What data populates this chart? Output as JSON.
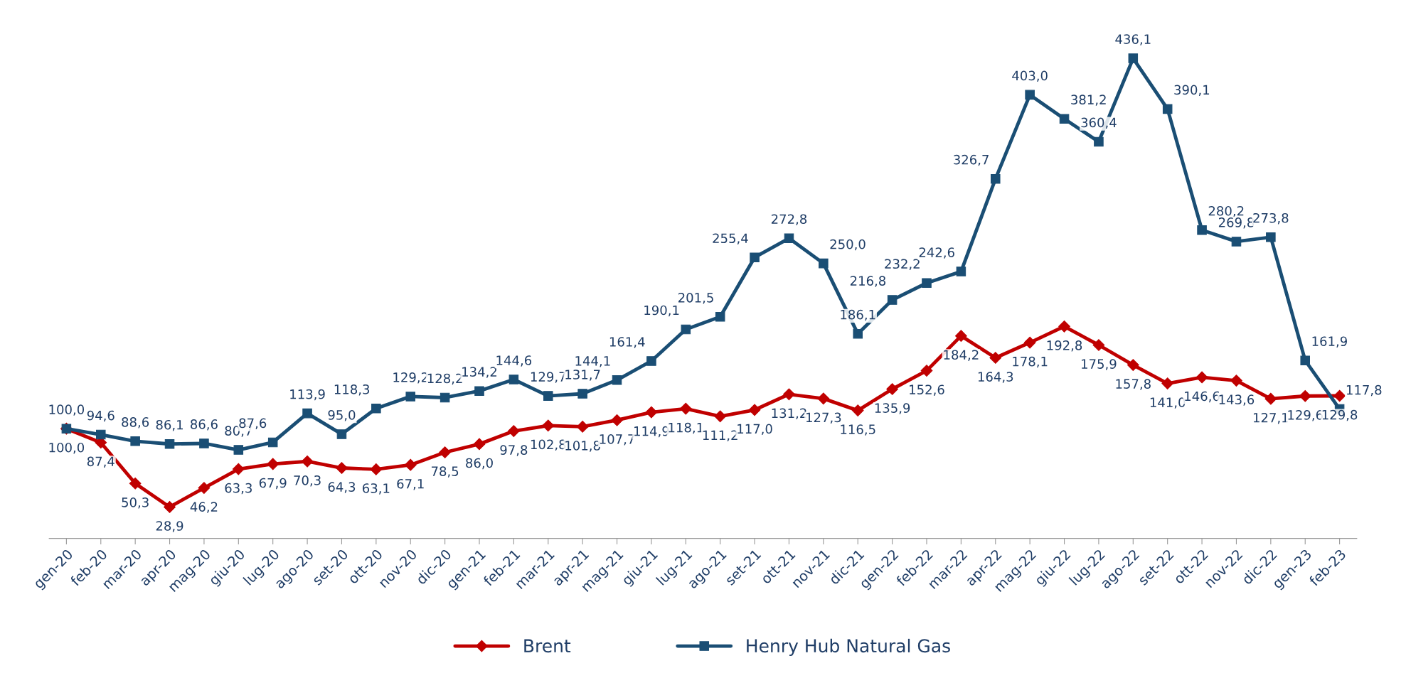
{
  "chart_data": {
    "type": "line",
    "categories": [
      "gen-20",
      "feb-20",
      "mar-20",
      "apr-20",
      "mag-20",
      "giu-20",
      "lug-20",
      "ago-20",
      "set-20",
      "ott-20",
      "nov-20",
      "dic-20",
      "gen-21",
      "feb-21",
      "mar-21",
      "apr-21",
      "mag-21",
      "giu-21",
      "lug-21",
      "ago-21",
      "set-21",
      "ott-21",
      "nov-21",
      "dic-21",
      "gen-22",
      "feb-22",
      "mar-22",
      "apr-22",
      "mag-22",
      "giu-22",
      "lug-22",
      "ago-22",
      "set-22",
      "ott-22",
      "nov-22",
      "dic-22",
      "gen-23",
      "feb-23"
    ],
    "series": [
      {
        "name": "Brent",
        "color": "#c00000",
        "marker": "diamond",
        "values": [
          100.0,
          87.4,
          50.3,
          28.9,
          46.2,
          63.3,
          67.9,
          70.3,
          64.3,
          63.1,
          67.1,
          78.5,
          86.0,
          97.8,
          102.8,
          101.8,
          107.7,
          114.9,
          118.1,
          111.2,
          117.0,
          131.2,
          127.3,
          116.5,
          135.9,
          152.6,
          184.2,
          164.3,
          178.1,
          192.8,
          175.9,
          157.8,
          141.0,
          146.6,
          143.6,
          127.1,
          129.6,
          129.8
        ],
        "value_labels": [
          "100,0",
          "87,4",
          "50,3",
          "28,9",
          "46,2",
          "63,3",
          "67,9",
          "70,3",
          "64,3",
          "63,1",
          "67,1",
          "78,5",
          "86,0",
          "97,8",
          "102,8",
          "101,8",
          "107,7",
          "114,9",
          "118,1",
          "111,2",
          "117,0",
          "131,2",
          "127,3",
          "116,5",
          "135,9",
          "152,6",
          "184,2",
          "164,3",
          "178,1",
          "192,8",
          "175,9",
          "157,8",
          "141,0",
          "146,6",
          "143,6",
          "127,1",
          "129,6",
          "129,8"
        ]
      },
      {
        "name": "Henry Hub Natural Gas",
        "color": "#1a4e74",
        "marker": "square",
        "values": [
          100.0,
          94.6,
          88.6,
          86.1,
          86.6,
          80.7,
          87.6,
          113.9,
          95.0,
          118.3,
          129.2,
          128.2,
          134.2,
          144.6,
          129.7,
          131.7,
          144.1,
          161.4,
          190.1,
          201.5,
          255.4,
          272.8,
          250.0,
          186.1,
          216.8,
          232.2,
          242.6,
          326.7,
          403.0,
          381.2,
          360.4,
          436.1,
          390.1,
          280.2,
          269.8,
          273.8,
          161.9,
          117.8
        ],
        "value_labels": [
          "100,0",
          "94,6",
          "88,6",
          "86,1",
          "86,6",
          "80,7",
          "87,6",
          "113,9",
          "95,0",
          "118,3",
          "129,2",
          "128,2",
          "134,2",
          "144,6",
          "129,7",
          "131,7",
          "144,1",
          "161,4",
          "190,1",
          "201,5",
          "255,4",
          "272,8",
          "250,0",
          "186,1",
          "216,8",
          "232,2",
          "242,6",
          "326,7",
          "403,0",
          "381,2",
          "360,4",
          "436,1",
          "390,1",
          "280,2",
          "269,8",
          "273,8",
          "161,9",
          "117,8"
        ]
      }
    ],
    "legend": "bottom",
    "grid": false,
    "tick_labels": "x",
    "line_style": "solid"
  }
}
